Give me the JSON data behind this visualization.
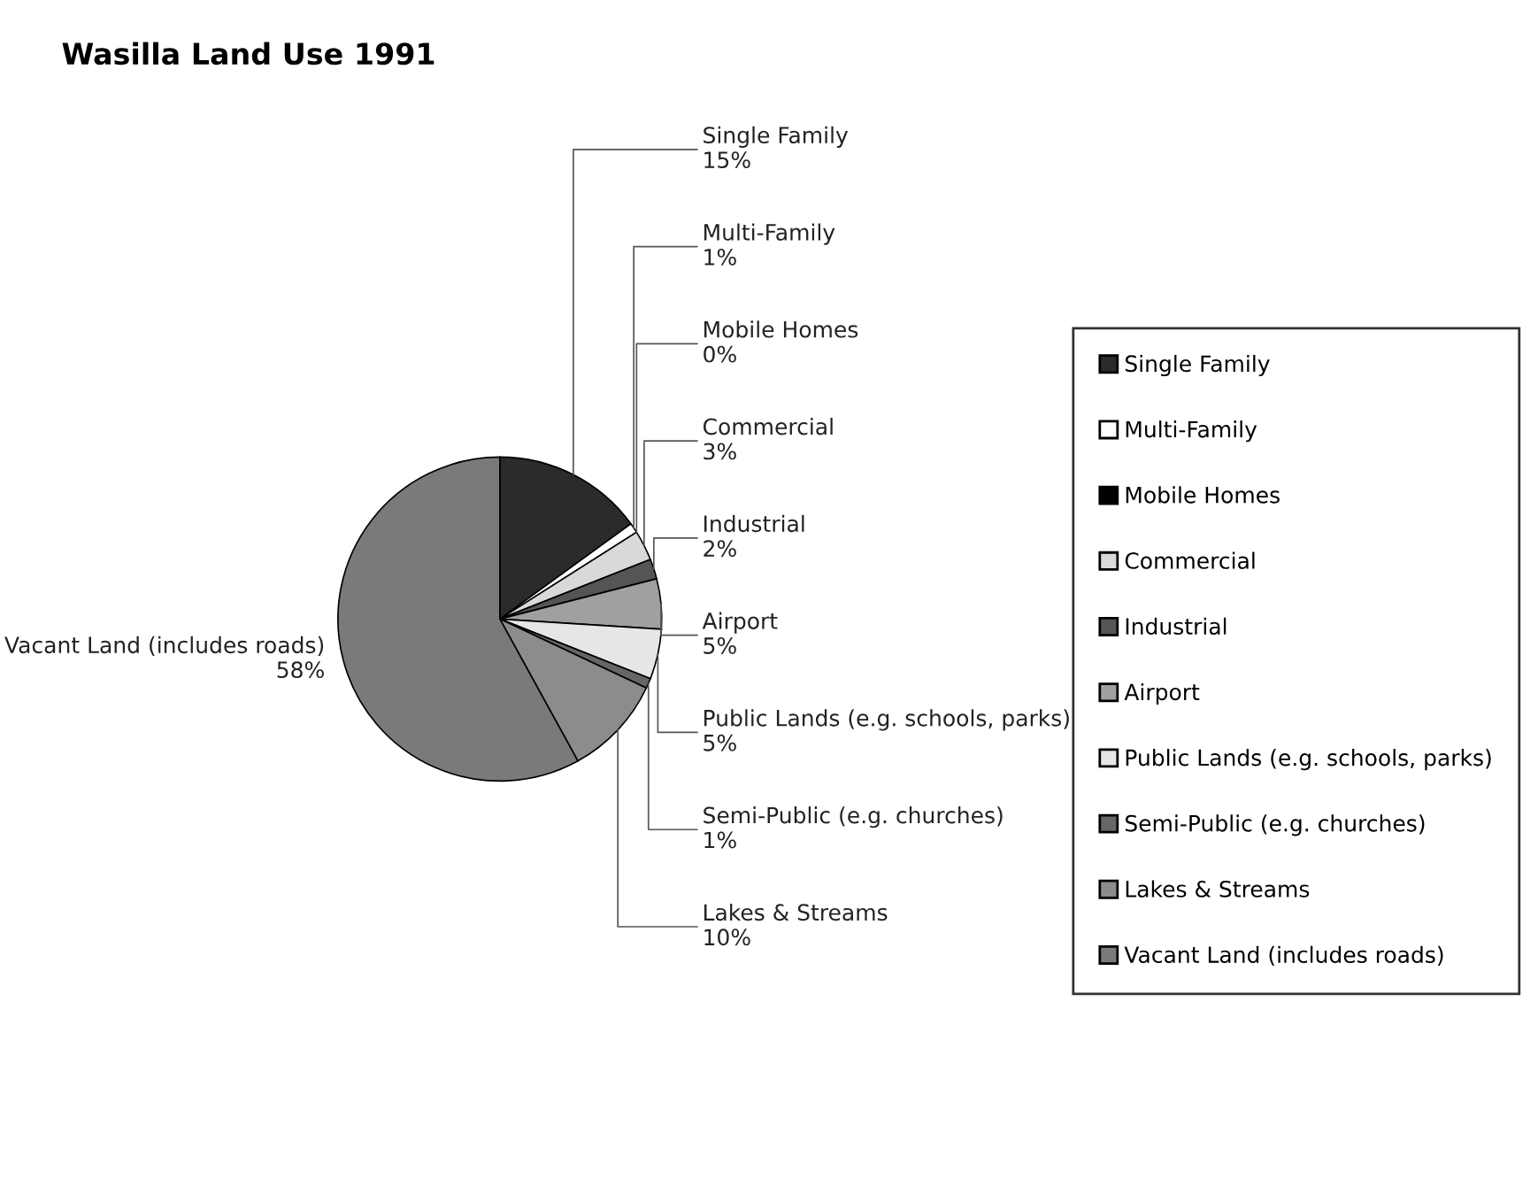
{
  "chart_data": {
    "type": "pie",
    "title": "Wasilla Land Use 1991",
    "categories": [
      "Single Family",
      "Multi-Family",
      "Mobile Homes",
      "Commercial",
      "Industrial",
      "Airport",
      "Public Lands (e.g. schools, parks)",
      "Semi-Public (e.g. churches)",
      "Lakes & Streams",
      "Vacant Land (includes roads)"
    ],
    "values": [
      15,
      1,
      0,
      3,
      2,
      5,
      5,
      1,
      10,
      58
    ],
    "value_labels": [
      "15%",
      "1%",
      "0%",
      "3%",
      "2%",
      "5%",
      "5%",
      "1%",
      "10%",
      "58%"
    ],
    "colors": [
      "#2b2b2b",
      "#ffffff",
      "#000000",
      "#d9d9d9",
      "#555555",
      "#a0a0a0",
      "#e6e6e6",
      "#666666",
      "#8c8c8c",
      "#7a7a7a"
    ],
    "legend": "right"
  }
}
